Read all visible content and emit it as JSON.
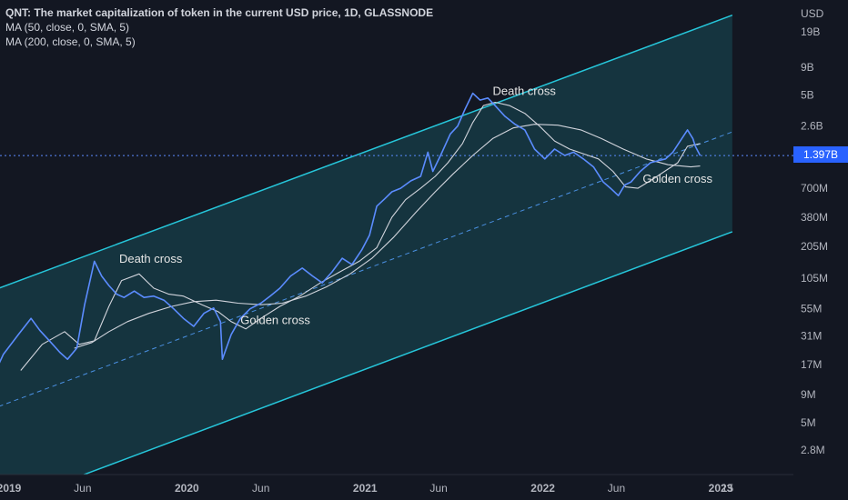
{
  "legend": {
    "title": "QNT: The market capitalization of token in the current USD price, 1D, GLASSNODE",
    "ma50": "MA (50, close, 0, SMA, 5)",
    "ma200": "MA (200, close, 0, SMA, 5)"
  },
  "axis": {
    "currency": "USD",
    "current_value_label": "1.397B",
    "current_value": 1397000000
  },
  "colors": {
    "background": "#131722",
    "price": "#5b8cff",
    "channel": "#26c6da",
    "channel_fill": "#1b6b75",
    "ma": "#d1d4dc",
    "badge": "#2962ff"
  },
  "chart_data": {
    "type": "line",
    "scale": "log",
    "y_ticks": [
      {
        "label": "19B",
        "value": 19000000000
      },
      {
        "label": "9B",
        "value": 9000000000
      },
      {
        "label": "5B",
        "value": 5000000000
      },
      {
        "label": "2.6B",
        "value": 2600000000
      },
      {
        "label": "700M",
        "value": 700000000
      },
      {
        "label": "380M",
        "value": 380000000
      },
      {
        "label": "205M",
        "value": 205000000
      },
      {
        "label": "105M",
        "value": 105000000
      },
      {
        "label": "55M",
        "value": 55000000
      },
      {
        "label": "31M",
        "value": 31000000
      },
      {
        "label": "17M",
        "value": 17000000
      },
      {
        "label": "9M",
        "value": 9000000
      },
      {
        "label": "5M",
        "value": 5000000
      },
      {
        "label": "2.8M",
        "value": 2800000
      }
    ],
    "x_ticks": [
      {
        "label": "2019",
        "date": "2019-01-01"
      },
      {
        "label": "Jun",
        "date": "2019-06-01"
      },
      {
        "label": "2020",
        "date": "2020-01-01"
      },
      {
        "label": "Jun",
        "date": "2020-06-01"
      },
      {
        "label": "2021",
        "date": "2021-01-01"
      },
      {
        "label": "Jun",
        "date": "2021-06-01"
      },
      {
        "label": "2022",
        "date": "2022-01-01"
      },
      {
        "label": "Jun",
        "date": "2022-06-01"
      },
      {
        "label": "2023",
        "date": "2023-01-01"
      },
      {
        "label": "15",
        "date": "2023-01-15"
      }
    ],
    "series": [
      {
        "name": "QNT",
        "x": [
          "2018-11-25",
          "2018-12-20",
          "2019-01-20",
          "2019-02-15",
          "2019-03-05",
          "2019-03-25",
          "2019-04-15",
          "2019-05-01",
          "2019-05-20",
          "2019-06-05",
          "2019-06-25",
          "2019-07-10",
          "2019-07-25",
          "2019-08-10",
          "2019-08-25",
          "2019-09-15",
          "2019-10-05",
          "2019-10-25",
          "2019-11-15",
          "2019-12-05",
          "2019-12-25",
          "2020-01-15",
          "2020-02-05",
          "2020-02-25",
          "2020-03-10",
          "2020-03-14",
          "2020-04-01",
          "2020-04-20",
          "2020-05-10",
          "2020-06-01",
          "2020-06-20",
          "2020-07-10",
          "2020-08-01",
          "2020-08-25",
          "2020-09-15",
          "2020-10-05",
          "2020-10-25",
          "2020-11-15",
          "2020-12-05",
          "2020-12-25",
          "2021-01-10",
          "2021-01-25",
          "2021-02-10",
          "2021-02-25",
          "2021-03-15",
          "2021-04-05",
          "2021-04-25",
          "2021-05-10",
          "2021-05-20",
          "2021-06-05",
          "2021-06-25",
          "2021-07-10",
          "2021-07-25",
          "2021-08-10",
          "2021-08-25",
          "2021-09-10",
          "2021-09-25",
          "2021-10-15",
          "2021-11-05",
          "2021-11-25",
          "2021-12-15",
          "2022-01-05",
          "2022-01-25",
          "2022-02-15",
          "2022-03-05",
          "2022-03-25",
          "2022-04-15",
          "2022-05-05",
          "2022-05-20",
          "2022-06-05",
          "2022-06-18",
          "2022-07-01",
          "2022-07-20",
          "2022-08-10",
          "2022-08-25",
          "2022-09-10",
          "2022-09-25",
          "2022-10-10",
          "2022-10-25",
          "2022-11-05",
          "2022-11-10",
          "2022-11-20"
        ],
        "values": [
          12000000,
          21000000,
          32000000,
          45000000,
          35000000,
          28000000,
          22000000,
          19000000,
          24000000,
          60000000,
          150000000,
          110000000,
          90000000,
          75000000,
          70000000,
          80000000,
          70000000,
          72000000,
          66000000,
          55000000,
          45000000,
          38000000,
          50000000,
          56000000,
          42000000,
          19000000,
          32000000,
          45000000,
          55000000,
          62000000,
          72000000,
          85000000,
          110000000,
          130000000,
          110000000,
          95000000,
          120000000,
          160000000,
          140000000,
          190000000,
          260000000,
          480000000,
          560000000,
          650000000,
          700000000,
          820000000,
          900000000,
          1500000000,
          1000000000,
          1400000000,
          2200000000,
          2600000000,
          3700000000,
          5200000000,
          4500000000,
          4700000000,
          4000000000,
          3200000000,
          2700000000,
          2400000000,
          1600000000,
          1300000000,
          1600000000,
          1400000000,
          1500000000,
          1300000000,
          1100000000,
          800000000,
          700000000,
          600000000,
          750000000,
          800000000,
          1000000000,
          1200000000,
          1250000000,
          1300000000,
          1500000000,
          1900000000,
          2400000000,
          2000000000,
          1700000000,
          1397000000
        ]
      },
      {
        "name": "MA (50, close, 0, SMA, 5)",
        "x": [
          "2019-01-25",
          "2019-03-10",
          "2019-04-25",
          "2019-05-25",
          "2019-06-25",
          "2019-07-25",
          "2019-08-20",
          "2019-09-25",
          "2019-10-25",
          "2019-11-25",
          "2019-12-25",
          "2020-02-01",
          "2020-03-05",
          "2020-04-01",
          "2020-05-01",
          "2020-06-01",
          "2020-07-10",
          "2020-08-20",
          "2020-10-01",
          "2020-11-10",
          "2020-12-20",
          "2021-01-25",
          "2021-02-25",
          "2021-03-25",
          "2021-04-25",
          "2021-05-25",
          "2021-06-20",
          "2021-07-20",
          "2021-08-10",
          "2021-09-01",
          "2021-09-25",
          "2021-10-25",
          "2021-11-25",
          "2021-12-25",
          "2022-01-25",
          "2022-02-25",
          "2022-03-25",
          "2022-04-25",
          "2022-05-25",
          "2022-06-20",
          "2022-07-15",
          "2022-08-15",
          "2022-09-15",
          "2022-10-05",
          "2022-10-25",
          "2022-11-20"
        ],
        "values": [
          15000000,
          26000000,
          34000000,
          26000000,
          28000000,
          58000000,
          100000000,
          115000000,
          85000000,
          75000000,
          72000000,
          60000000,
          52000000,
          42000000,
          36000000,
          45000000,
          58000000,
          72000000,
          95000000,
          120000000,
          150000000,
          200000000,
          380000000,
          550000000,
          700000000,
          900000000,
          1200000000,
          1800000000,
          2800000000,
          4000000000,
          4300000000,
          4000000000,
          3400000000,
          2600000000,
          1900000000,
          1600000000,
          1450000000,
          1300000000,
          1000000000,
          720000000,
          700000000,
          850000000,
          1050000000,
          1200000000,
          1700000000,
          1800000000
        ]
      },
      {
        "name": "MA (200, close, 0, SMA, 5)",
        "x": [
          "2019-05-15",
          "2019-06-20",
          "2019-07-25",
          "2019-09-01",
          "2019-10-15",
          "2019-12-01",
          "2020-01-15",
          "2020-03-01",
          "2020-04-15",
          "2020-06-01",
          "2020-07-15",
          "2020-09-01",
          "2020-10-15",
          "2020-12-01",
          "2021-01-15",
          "2021-03-01",
          "2021-04-15",
          "2021-05-25",
          "2021-07-01",
          "2021-08-10",
          "2021-09-20",
          "2021-11-01",
          "2021-12-15",
          "2022-02-01",
          "2022-03-20",
          "2022-05-01",
          "2022-06-15",
          "2022-08-01",
          "2022-09-15",
          "2022-11-01",
          "2022-11-20"
        ],
        "values": [
          24000000,
          27000000,
          34000000,
          42000000,
          50000000,
          58000000,
          64000000,
          66000000,
          62000000,
          60000000,
          62000000,
          72000000,
          88000000,
          115000000,
          160000000,
          250000000,
          420000000,
          650000000,
          950000000,
          1400000000,
          2000000000,
          2500000000,
          2700000000,
          2650000000,
          2400000000,
          2000000000,
          1600000000,
          1300000000,
          1150000000,
          1100000000,
          1120000000
        ]
      }
    ],
    "channel": {
      "start_date": "2018-11-25",
      "end_date": "2023-01-25",
      "upper": [
        80000000,
        27000000000
      ],
      "middle": [
        6600000,
        2300000000
      ],
      "lower": [
        800000,
        280000000
      ]
    },
    "current_level": 1397000000,
    "annotations": [
      {
        "text": "Death cross",
        "date": "2019-08-15",
        "value": 145000000
      },
      {
        "text": "Golden cross",
        "date": "2020-04-20",
        "value": 40000000
      },
      {
        "text": "Death cross",
        "date": "2021-09-20",
        "value": 5000000000
      },
      {
        "text": "Golden cross",
        "date": "2022-07-25",
        "value": 790000000
      }
    ]
  }
}
